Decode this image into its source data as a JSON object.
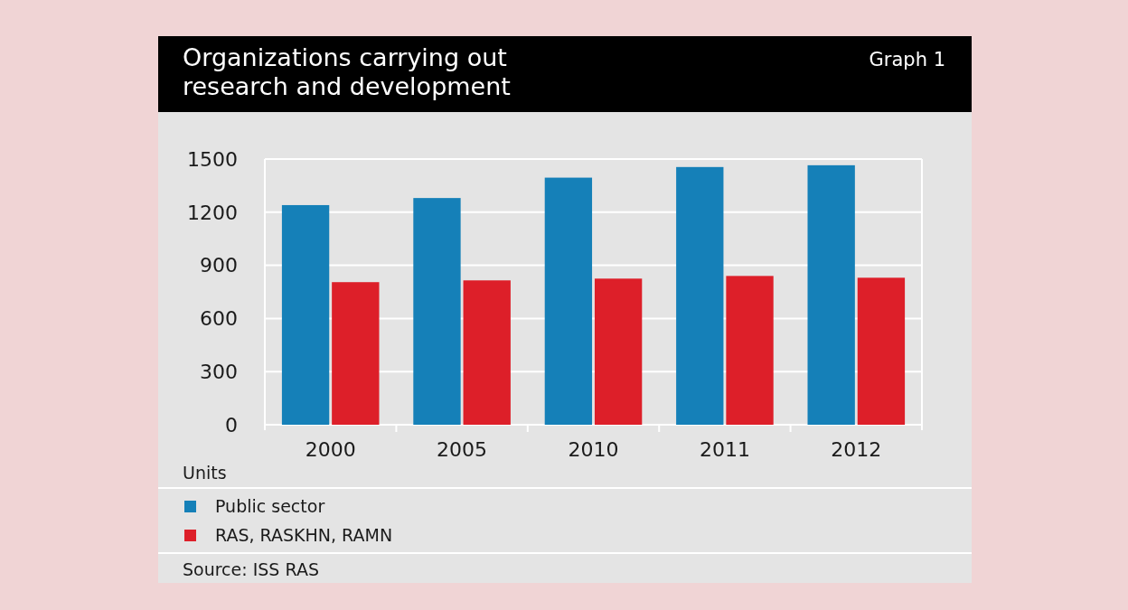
{
  "chart_data": {
    "type": "bar",
    "title": "Organizations carrying out research and development",
    "categories": [
      "2000",
      "2005",
      "2010",
      "2011",
      "2012"
    ],
    "series": [
      {
        "name": "Public sector",
        "color": "#1580b8",
        "values": [
          1240,
          1280,
          1395,
          1455,
          1465
        ]
      },
      {
        "name": "RAS, RASKHN, RAMN",
        "color": "#dd1f29",
        "values": [
          805,
          815,
          825,
          840,
          830
        ]
      }
    ],
    "ylabel": "Units",
    "ylim": [
      0,
      1500
    ],
    "yticks": [
      0,
      300,
      600,
      900,
      1200,
      1500
    ],
    "grid": "y",
    "legend": "bottom",
    "annotations": [
      "Graph 1",
      "Source: ISS RAS"
    ]
  }
}
